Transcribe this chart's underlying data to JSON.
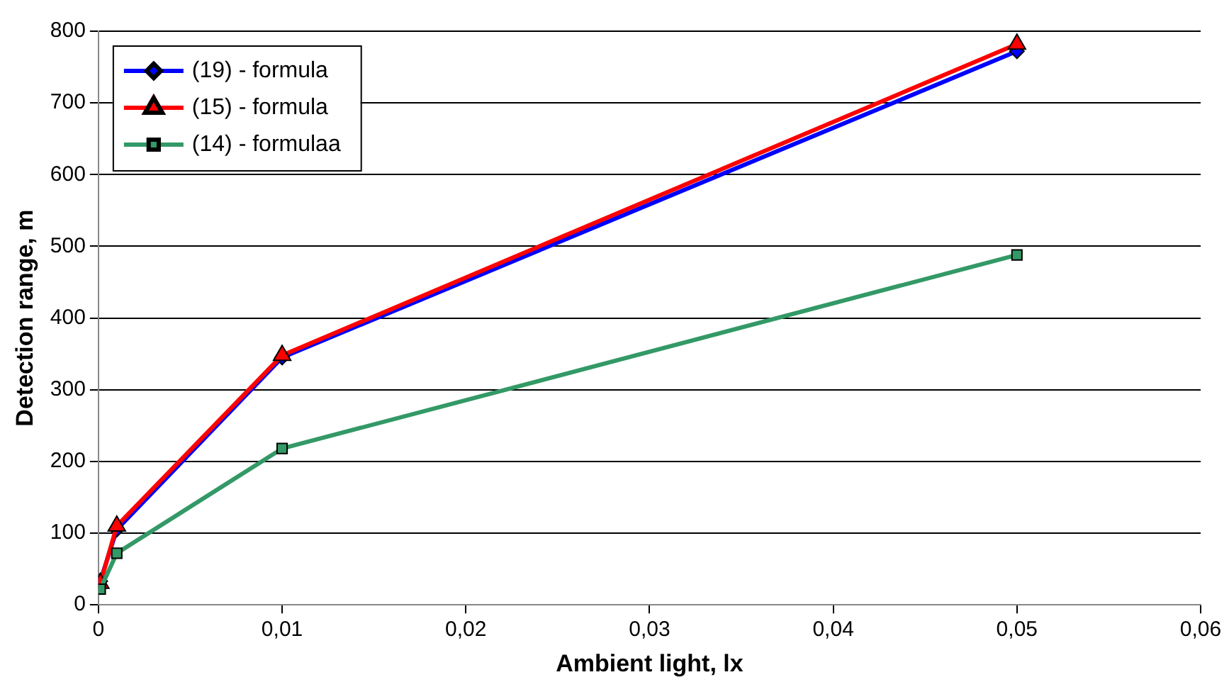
{
  "chart_data": {
    "type": "line",
    "xlabel": "Ambient light, lx",
    "ylabel": "Detection range, m",
    "series": [
      {
        "name": "(19) - formula",
        "color": "#0000ff",
        "marker": "diamond",
        "x": [
          0.0001,
          0.001,
          0.01,
          0.05
        ],
        "values": [
          33,
          105,
          345,
          772
        ]
      },
      {
        "name": "(15) - formula",
        "color": "#ff0000",
        "marker": "triangle",
        "x": [
          0.0001,
          0.001,
          0.01,
          0.05
        ],
        "values": [
          30,
          110,
          348,
          782
        ]
      },
      {
        "name": "(14) - formulaa",
        "color": "#339966",
        "marker": "square",
        "x": [
          0.0001,
          0.001,
          0.01,
          0.05
        ],
        "values": [
          22,
          72,
          218,
          488
        ]
      }
    ],
    "xlim": [
      0,
      0.06
    ],
    "xticks": [
      0,
      {
        "value": 0.01,
        "label": "0,01"
      },
      {
        "value": 0.02,
        "label": "0,02"
      },
      {
        "value": 0.03,
        "label": "0,03"
      },
      {
        "value": 0.04,
        "label": "0,04"
      },
      {
        "value": 0.05,
        "label": "0,05"
      },
      {
        "value": 0.06,
        "label": "0,06"
      }
    ],
    "ylim": [
      0,
      800
    ],
    "yticks": [
      0,
      100,
      200,
      300,
      400,
      500,
      600,
      700,
      800
    ],
    "grid": "y",
    "legend": "top left"
  }
}
